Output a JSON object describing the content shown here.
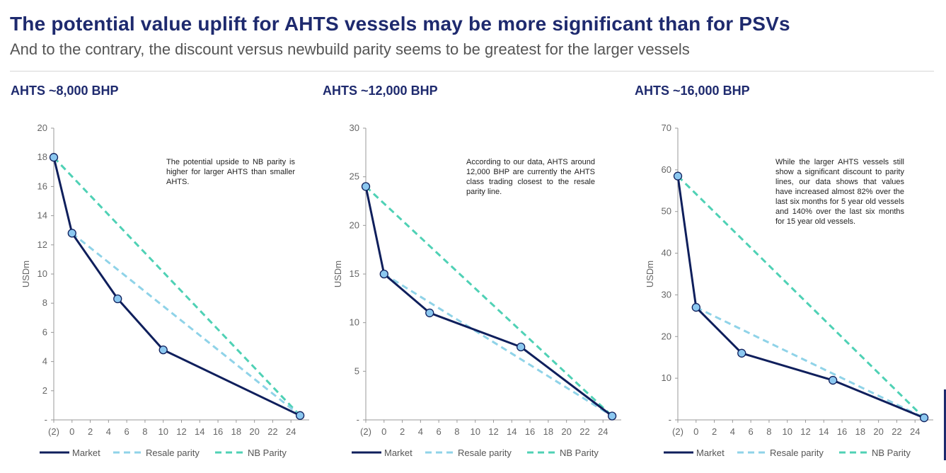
{
  "header": {
    "title": "The potential value uplift for AHTS vessels may be more significant than for PSVs",
    "subtitle": "And to the contrary, the discount versus newbuild parity seems to be greatest for the larger vessels"
  },
  "colors": {
    "market": "#0f1f5c",
    "resale_parity": "#8fd3e8",
    "nb_parity": "#4fd1b5",
    "marker_fill": "#8cc8f0"
  },
  "chart_data": [
    {
      "type": "line",
      "title": "AHTS ~8,000 BHP",
      "ylabel": "USDm",
      "xlim": [
        -2,
        26
      ],
      "ylim": [
        0,
        20
      ],
      "x_ticks": [
        -2,
        0,
        2,
        4,
        6,
        8,
        10,
        12,
        14,
        16,
        18,
        20,
        22,
        24
      ],
      "x_tick_labels": [
        "(2)",
        "0",
        "2",
        "4",
        "6",
        "8",
        "10",
        "12",
        "14",
        "16",
        "18",
        "20",
        "22",
        "24"
      ],
      "y_ticks": [
        0,
        2,
        4,
        6,
        8,
        10,
        12,
        14,
        16,
        18,
        20
      ],
      "y_tick_labels": [
        "-",
        "2",
        "4",
        "6",
        "8",
        "10",
        "12",
        "14",
        "16",
        "18",
        "20"
      ],
      "series": [
        {
          "name": "Market",
          "x": [
            -2,
            0,
            5,
            10,
            25
          ],
          "y": [
            18,
            12.8,
            8.3,
            4.8,
            0.3
          ]
        },
        {
          "name": "Resale parity",
          "x": [
            0,
            25
          ],
          "y": [
            12.8,
            0.3
          ]
        },
        {
          "name": "NB Parity",
          "x": [
            -2,
            25
          ],
          "y": [
            18,
            0.3
          ]
        }
      ],
      "annotation": "The potential upside to NB parity is higher for larger AHTS than smaller AHTS.",
      "legend_position": "bottom"
    },
    {
      "type": "line",
      "title": "AHTS ~12,000 BHP",
      "ylabel": "USDm",
      "xlim": [
        -2,
        26
      ],
      "ylim": [
        0,
        30
      ],
      "x_ticks": [
        -2,
        0,
        2,
        4,
        6,
        8,
        10,
        12,
        14,
        16,
        18,
        20,
        22,
        24
      ],
      "x_tick_labels": [
        "(2)",
        "0",
        "2",
        "4",
        "6",
        "8",
        "10",
        "12",
        "14",
        "16",
        "18",
        "20",
        "22",
        "24"
      ],
      "y_ticks": [
        0,
        5,
        10,
        15,
        20,
        25,
        30
      ],
      "y_tick_labels": [
        "-",
        "5",
        "10",
        "15",
        "20",
        "25",
        "30"
      ],
      "series": [
        {
          "name": "Market",
          "x": [
            -2,
            0,
            5,
            15,
            25
          ],
          "y": [
            24,
            15,
            11,
            7.5,
            0.4
          ]
        },
        {
          "name": "Resale parity",
          "x": [
            0,
            25
          ],
          "y": [
            15,
            0.4
          ]
        },
        {
          "name": "NB Parity",
          "x": [
            -2,
            25
          ],
          "y": [
            24,
            0.4
          ]
        }
      ],
      "annotation": "According to our data, AHTS around 12,000 BHP are currently the AHTS class trading closest to the resale parity line.",
      "legend_position": "bottom"
    },
    {
      "type": "line",
      "title": "AHTS ~16,000 BHP",
      "ylabel": "USDm",
      "xlim": [
        -2,
        26
      ],
      "ylim": [
        0,
        70
      ],
      "x_ticks": [
        -2,
        0,
        2,
        4,
        6,
        8,
        10,
        12,
        14,
        16,
        18,
        20,
        22,
        24
      ],
      "x_tick_labels": [
        "(2)",
        "0",
        "2",
        "4",
        "6",
        "8",
        "10",
        "12",
        "14",
        "16",
        "18",
        "20",
        "22",
        "24"
      ],
      "y_ticks": [
        0,
        10,
        20,
        30,
        40,
        50,
        60,
        70
      ],
      "y_tick_labels": [
        "-",
        "10",
        "20",
        "30",
        "40",
        "50",
        "60",
        "70"
      ],
      "series": [
        {
          "name": "Market",
          "x": [
            -2,
            0,
            5,
            15,
            25
          ],
          "y": [
            58.5,
            27,
            16,
            9.5,
            0.5
          ]
        },
        {
          "name": "Resale parity",
          "x": [
            0,
            25
          ],
          "y": [
            27,
            0.5
          ]
        },
        {
          "name": "NB Parity",
          "x": [
            -2,
            25
          ],
          "y": [
            58.5,
            0.5
          ]
        }
      ],
      "annotation": "While the larger AHTS vessels still show a significant discount to parity lines, our data shows that values have increased almost 82% over the last six months for 5 year old vessels and 140% over the last six months for 15 year old vessels.",
      "legend_position": "bottom"
    }
  ]
}
